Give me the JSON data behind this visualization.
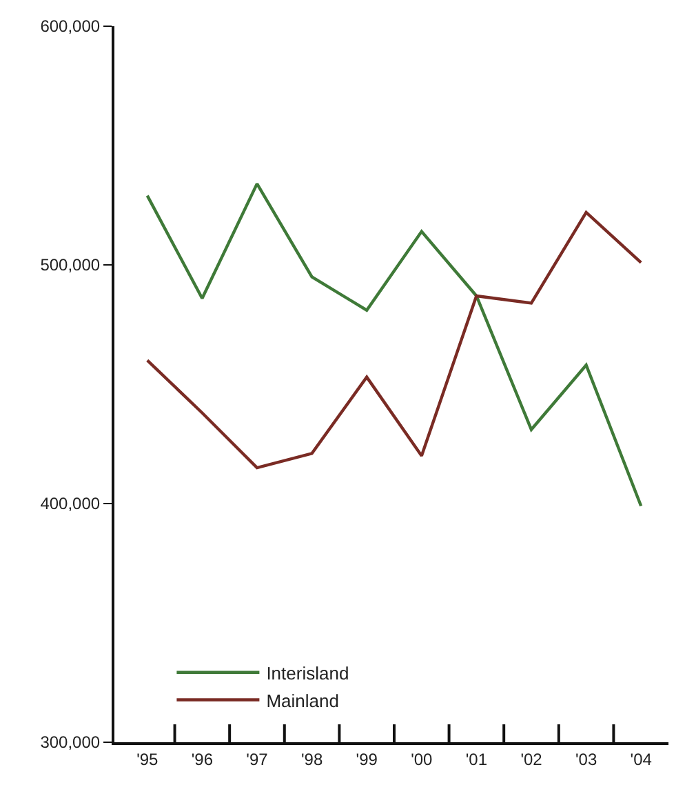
{
  "chart_data": {
    "type": "line",
    "categories": [
      "'95",
      "'96",
      "'97",
      "'98",
      "'99",
      "'00",
      "'01",
      "'02",
      "'03",
      "'04"
    ],
    "series": [
      {
        "name": "Interisland",
        "color": "#3f7a38",
        "values": [
          529000,
          486000,
          534000,
          495000,
          481000,
          514000,
          487000,
          431000,
          458000,
          399000
        ]
      },
      {
        "name": "Mainland",
        "color": "#7a2b24",
        "values": [
          460000,
          438000,
          415000,
          421000,
          453000,
          420000,
          487000,
          484000,
          522000,
          501000
        ]
      }
    ],
    "ylim": [
      300000,
      600000
    ],
    "yticks": [
      {
        "value": 300000,
        "label": "300,000"
      },
      {
        "value": 400000,
        "label": "400,000"
      },
      {
        "value": 500000,
        "label": "500,000"
      },
      {
        "value": 600000,
        "label": "600,000"
      }
    ],
    "legend": "bottom left",
    "marker": "none",
    "line_style": "solid"
  }
}
